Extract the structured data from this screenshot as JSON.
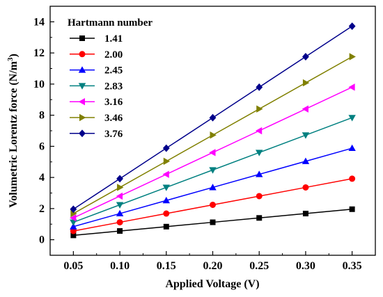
{
  "chart_data": {
    "type": "line",
    "xlabel": "Applied Voltage (V)",
    "ylabel_main": "Volumetric Lorentz force (N/m",
    "ylabel_sup": "3",
    "ylabel_close": ")",
    "xlim": [
      0.025,
      0.375
    ],
    "ylim": [
      -1,
      15
    ],
    "xticks": [
      0.05,
      0.1,
      0.15,
      0.2,
      0.25,
      0.3,
      0.35
    ],
    "xtick_labels": [
      "0.05",
      "0.10",
      "0.15",
      "0.20",
      "0.25",
      "0.30",
      "0.35"
    ],
    "yticks": [
      0,
      2,
      4,
      6,
      8,
      10,
      12,
      14
    ],
    "ytick_labels": [
      "0",
      "2",
      "4",
      "6",
      "8",
      "10",
      "12",
      "14"
    ],
    "grid": false,
    "legend": {
      "title": "Hartmann number",
      "placement": "top-left"
    },
    "x": [
      0.05,
      0.1,
      0.15,
      0.2,
      0.25,
      0.3,
      0.35
    ],
    "series": [
      {
        "name": "1.41",
        "color": "#000000",
        "marker": "square",
        "values": [
          0.28,
          0.56,
          0.84,
          1.12,
          1.4,
          1.68,
          1.96
        ]
      },
      {
        "name": "2.00",
        "color": "#ff0000",
        "marker": "circle",
        "values": [
          0.56,
          1.12,
          1.68,
          2.24,
          2.8,
          3.36,
          3.92
        ]
      },
      {
        "name": "2.45",
        "color": "#0000ff",
        "marker": "triangle-up",
        "values": [
          0.84,
          1.68,
          2.52,
          3.36,
          4.2,
          5.04,
          5.88
        ]
      },
      {
        "name": "2.83",
        "color": "#008080",
        "marker": "triangle-down",
        "values": [
          1.12,
          2.24,
          3.36,
          4.48,
          5.6,
          6.72,
          7.84
        ]
      },
      {
        "name": "3.16",
        "color": "#ff00ff",
        "marker": "triangle-left",
        "values": [
          1.4,
          2.8,
          4.2,
          5.6,
          7.0,
          8.4,
          9.8
        ]
      },
      {
        "name": "3.46",
        "color": "#808000",
        "marker": "triangle-right",
        "values": [
          1.68,
          3.36,
          5.04,
          6.72,
          8.4,
          10.08,
          11.76
        ]
      },
      {
        "name": "3.76",
        "color": "#00008b",
        "marker": "diamond",
        "values": [
          1.96,
          3.92,
          5.88,
          7.84,
          9.8,
          11.76,
          13.72
        ]
      }
    ]
  }
}
